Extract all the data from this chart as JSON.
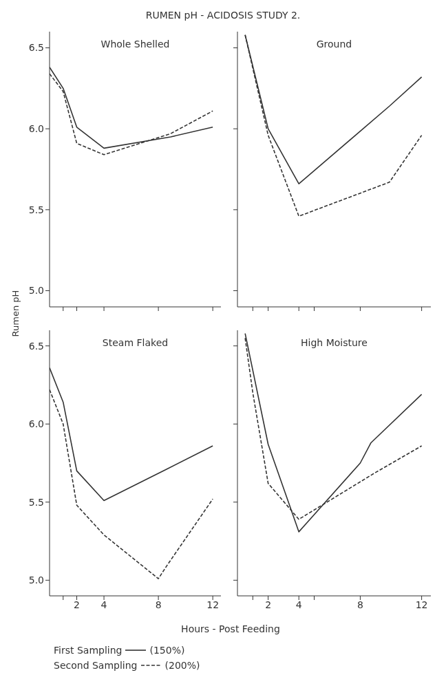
{
  "chart_data": [
    {
      "type": "line",
      "title": "Whole Shelled",
      "ylabel": "Rumen pH",
      "annotations": [
        "RUMEN pH - ACIDOSIS STUDY 2."
      ],
      "ylim": [
        4.9,
        6.6
      ],
      "yticks": [
        {
          "value": 5,
          "label": "5.0"
        },
        {
          "value": 5.5,
          "label": "5.5"
        },
        {
          "value": 6,
          "label": "6.0"
        },
        {
          "value": 6.5,
          "label": "6.5"
        }
      ],
      "xlim": [
        0,
        12.6
      ],
      "xticks": [
        {
          "value": 1,
          "label": null
        },
        {
          "value": 2,
          "label": null
        },
        {
          "value": 4,
          "label": null
        },
        {
          "value": 8,
          "label": null
        },
        {
          "value": 12,
          "label": null
        }
      ],
      "tick_labels": "y",
      "grid": false,
      "marker": "none",
      "series": [
        {
          "color": "#333333",
          "line_style": "solid",
          "x": [
            0,
            1,
            2,
            4,
            8.9,
            12
          ],
          "values": [
            6.38,
            6.25,
            6.01,
            5.88,
            5.95,
            6.01
          ]
        },
        {
          "color": "#333333",
          "line_style": "dashed",
          "x": [
            0,
            1,
            2,
            4,
            8.9,
            12
          ],
          "values": [
            6.34,
            6.23,
            5.91,
            5.84,
            5.97,
            6.11
          ]
        }
      ]
    },
    {
      "type": "line",
      "title": "Ground",
      "ylim": [
        4.9,
        6.6
      ],
      "yticks": [
        {
          "value": 5,
          "label": null
        },
        {
          "value": 5.5,
          "label": null
        },
        {
          "value": 6,
          "label": null
        },
        {
          "value": 6.5,
          "label": null
        }
      ],
      "xlim": [
        0,
        12.6
      ],
      "xticks": [
        {
          "value": 1,
          "label": null
        },
        {
          "value": 2,
          "label": null
        },
        {
          "value": 4,
          "label": null
        },
        {
          "value": 5,
          "label": null
        },
        {
          "value": 8,
          "label": null
        },
        {
          "value": 12,
          "label": null
        }
      ],
      "tick_labels": false,
      "grid": false,
      "marker": "none",
      "series": [
        {
          "color": "#333333",
          "line_style": "solid",
          "x": [
            0.5,
            2,
            4,
            9.9,
            12
          ],
          "values": [
            6.58,
            6.0,
            5.66,
            6.14,
            6.32
          ]
        },
        {
          "color": "#333333",
          "line_style": "dashed",
          "x": [
            0.5,
            2,
            4,
            9.9,
            12
          ],
          "values": [
            6.58,
            5.96,
            5.46,
            5.67,
            5.96
          ]
        }
      ]
    },
    {
      "type": "line",
      "title": "Steam Flaked",
      "xlabel": "Hours - Post Feeding",
      "annotations": [
        "(150%)",
        "(200%)"
      ],
      "ylim": [
        4.9,
        6.6
      ],
      "yticks": [
        {
          "value": 5,
          "label": "5.0"
        },
        {
          "value": 5.5,
          "label": "5.5"
        },
        {
          "value": 6,
          "label": "6.0"
        },
        {
          "value": 6.5,
          "label": "6.5"
        }
      ],
      "xlim": [
        0,
        12.6
      ],
      "xticks": [
        {
          "value": 1,
          "label": null
        },
        2,
        4,
        8,
        12
      ],
      "grid": false,
      "legend": "bottom",
      "marker": "none",
      "series": [
        {
          "name": "First Sampling",
          "color": "#333333",
          "line_style": "solid",
          "x": [
            0,
            1,
            2,
            4,
            8.6,
            12
          ],
          "values": [
            6.36,
            6.14,
            5.7,
            5.51,
            5.71,
            5.86
          ]
        },
        {
          "name": "Second Sampling",
          "color": "#333333",
          "line_style": "dashed",
          "x": [
            0,
            1,
            2,
            4,
            8,
            8.6,
            12
          ],
          "values": [
            6.22,
            6.0,
            5.48,
            5.29,
            5.01,
            5.09,
            5.52
          ]
        }
      ]
    },
    {
      "type": "line",
      "title": "High Moisture",
      "ylim": [
        4.9,
        6.6
      ],
      "yticks": [
        {
          "value": 5,
          "label": null
        },
        {
          "value": 5.5,
          "label": null
        },
        {
          "value": 6,
          "label": null
        },
        {
          "value": 6.5,
          "label": null
        }
      ],
      "xlim": [
        0,
        12.6
      ],
      "xticks": [
        {
          "value": 1,
          "label": null
        },
        2,
        4,
        {
          "value": 5,
          "label": null
        },
        8,
        12
      ],
      "tick_labels": "x",
      "grid": false,
      "marker": "none",
      "series": [
        {
          "color": "#333333",
          "line_style": "solid",
          "x": [
            0.5,
            2,
            4,
            8,
            8.7,
            12
          ],
          "values": [
            6.58,
            5.87,
            5.31,
            5.75,
            5.88,
            6.19
          ]
        },
        {
          "color": "#333333",
          "line_style": "dashed",
          "x": [
            0.5,
            1,
            2,
            4,
            9,
            12
          ],
          "values": [
            6.55,
            6.2,
            5.62,
            5.39,
            5.69,
            5.86
          ]
        }
      ]
    }
  ]
}
